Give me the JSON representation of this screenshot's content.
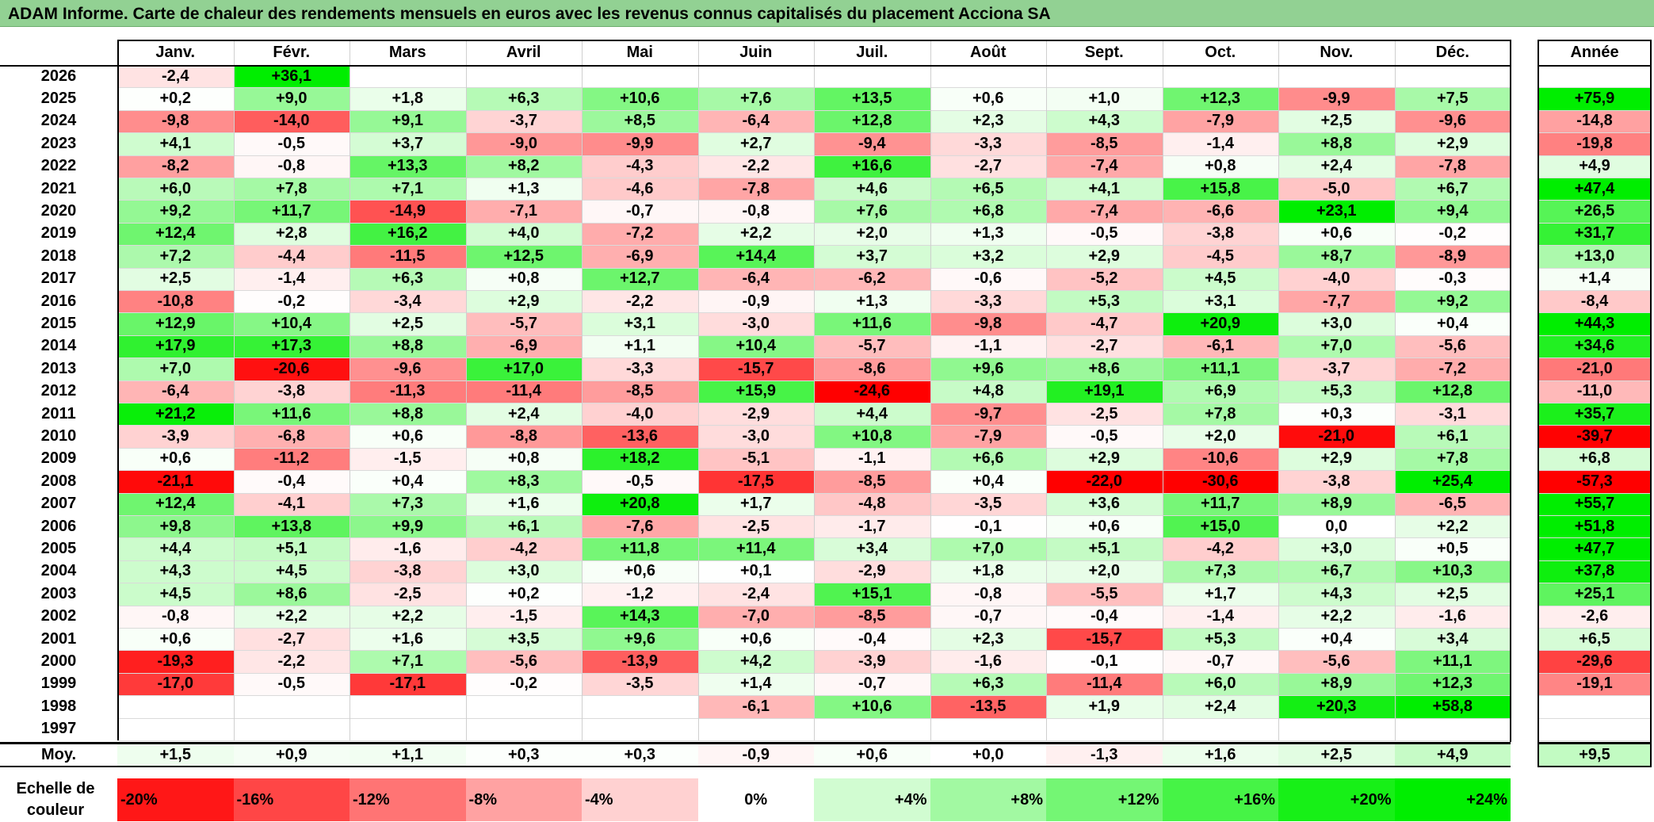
{
  "title": "ADAM Informe. Carte de chaleur des rendements mensuels en euros avec les revenus connus capitalisés du placement Acciona SA",
  "months": [
    "Janv.",
    "Févr.",
    "Mars",
    "Avril",
    "Mai",
    "Juin",
    "Juil.",
    "Août",
    "Sept.",
    "Oct.",
    "Nov.",
    "Déc."
  ],
  "annual_header": "Année",
  "avg_label": "Moy.",
  "scale_label_line1": "Echelle de",
  "scale_label_line2": "couleur",
  "colors": {
    "neg_max": "#ff0000",
    "pos_max": "#00ee00",
    "neutral": "#ffffff",
    "title_bar": "#92d193"
  },
  "chart_data": {
    "type": "heatmap",
    "title": "ADAM Informe. Carte de chaleur des rendements mensuels en euros avec les revenus connus capitalisés du placement Acciona SA",
    "x_categories": [
      "Janv.",
      "Févr.",
      "Mars",
      "Avril",
      "Mai",
      "Juin",
      "Juil.",
      "Août",
      "Sept.",
      "Oct.",
      "Nov.",
      "Déc."
    ],
    "rows": [
      {
        "year": "2026",
        "months": [
          "-2,4",
          "+36,1",
          "",
          "",
          "",
          "",
          "",
          "",
          "",
          "",
          "",
          ""
        ],
        "annual": ""
      },
      {
        "year": "2025",
        "months": [
          "+0,2",
          "+9,0",
          "+1,8",
          "+6,3",
          "+10,6",
          "+7,6",
          "+13,5",
          "+0,6",
          "+1,0",
          "+12,3",
          "-9,9",
          "+7,5"
        ],
        "annual": "+75,9"
      },
      {
        "year": "2024",
        "months": [
          "-9,8",
          "-14,0",
          "+9,1",
          "-3,7",
          "+8,5",
          "-6,4",
          "+12,8",
          "+2,3",
          "+4,3",
          "-7,9",
          "+2,5",
          "-9,6"
        ],
        "annual": "-14,8"
      },
      {
        "year": "2023",
        "months": [
          "+4,1",
          "-0,5",
          "+3,7",
          "-9,0",
          "-9,9",
          "+2,7",
          "-9,4",
          "-3,3",
          "-8,5",
          "-1,4",
          "+8,8",
          "+2,9"
        ],
        "annual": "-19,8"
      },
      {
        "year": "2022",
        "months": [
          "-8,2",
          "-0,8",
          "+13,3",
          "+8,2",
          "-4,3",
          "-2,2",
          "+16,6",
          "-2,7",
          "-7,4",
          "+0,8",
          "+2,4",
          "-7,8"
        ],
        "annual": "+4,9"
      },
      {
        "year": "2021",
        "months": [
          "+6,0",
          "+7,8",
          "+7,1",
          "+1,3",
          "-4,6",
          "-7,8",
          "+4,6",
          "+6,5",
          "+4,1",
          "+15,8",
          "-5,0",
          "+6,7"
        ],
        "annual": "+47,4"
      },
      {
        "year": "2020",
        "months": [
          "+9,2",
          "+11,7",
          "-14,9",
          "-7,1",
          "-0,7",
          "-0,8",
          "+7,6",
          "+6,8",
          "-7,4",
          "-6,6",
          "+23,1",
          "+9,4"
        ],
        "annual": "+26,5"
      },
      {
        "year": "2019",
        "months": [
          "+12,4",
          "+2,8",
          "+16,2",
          "+4,0",
          "-7,2",
          "+2,2",
          "+2,0",
          "+1,3",
          "-0,5",
          "-3,8",
          "+0,6",
          "-0,2"
        ],
        "annual": "+31,7"
      },
      {
        "year": "2018",
        "months": [
          "+7,2",
          "-4,4",
          "-11,5",
          "+12,5",
          "-6,9",
          "+14,4",
          "+3,7",
          "+3,2",
          "+2,9",
          "-4,5",
          "+8,7",
          "-8,9"
        ],
        "annual": "+13,0"
      },
      {
        "year": "2017",
        "months": [
          "+2,5",
          "-1,4",
          "+6,3",
          "+0,8",
          "+12,7",
          "-6,4",
          "-6,2",
          "-0,6",
          "-5,2",
          "+4,5",
          "-4,0",
          "-0,3"
        ],
        "annual": "+1,4"
      },
      {
        "year": "2016",
        "months": [
          "-10,8",
          "-0,2",
          "-3,4",
          "+2,9",
          "-2,2",
          "-0,9",
          "+1,3",
          "-3,3",
          "+5,3",
          "+3,1",
          "-7,7",
          "+9,2"
        ],
        "annual": "-8,4"
      },
      {
        "year": "2015",
        "months": [
          "+12,9",
          "+10,4",
          "+2,5",
          "-5,7",
          "+3,1",
          "-3,0",
          "+11,6",
          "-9,8",
          "-4,7",
          "+20,9",
          "+3,0",
          "+0,4"
        ],
        "annual": "+44,3"
      },
      {
        "year": "2014",
        "months": [
          "+17,9",
          "+17,3",
          "+8,8",
          "-6,9",
          "+1,1",
          "+10,4",
          "-5,7",
          "-1,1",
          "-2,7",
          "-6,1",
          "+7,0",
          "-5,6"
        ],
        "annual": "+34,6"
      },
      {
        "year": "2013",
        "months": [
          "+7,0",
          "-20,6",
          "-9,6",
          "+17,0",
          "-3,3",
          "-15,7",
          "-8,6",
          "+9,6",
          "+8,6",
          "+11,1",
          "-3,7",
          "-7,2"
        ],
        "annual": "-21,0"
      },
      {
        "year": "2012",
        "months": [
          "-6,4",
          "-3,8",
          "-11,3",
          "-11,4",
          "-8,5",
          "+15,9",
          "-24,6",
          "+4,8",
          "+19,1",
          "+6,9",
          "+5,3",
          "+12,8"
        ],
        "annual": "-11,0"
      },
      {
        "year": "2011",
        "months": [
          "+21,2",
          "+11,6",
          "+8,8",
          "+2,4",
          "-4,0",
          "-2,9",
          "+4,4",
          "-9,7",
          "-2,5",
          "+7,8",
          "+0,3",
          "-3,1"
        ],
        "annual": "+35,7"
      },
      {
        "year": "2010",
        "months": [
          "-3,9",
          "-6,8",
          "+0,6",
          "-8,8",
          "-13,6",
          "-3,0",
          "+10,8",
          "-7,9",
          "-0,5",
          "+2,0",
          "-21,0",
          "+6,1"
        ],
        "annual": "-39,7"
      },
      {
        "year": "2009",
        "months": [
          "+0,6",
          "-11,2",
          "-1,5",
          "+0,8",
          "+18,2",
          "-5,1",
          "-1,1",
          "+6,6",
          "+2,9",
          "-10,6",
          "+2,9",
          "+7,8"
        ],
        "annual": "+6,8"
      },
      {
        "year": "2008",
        "months": [
          "-21,1",
          "-0,4",
          "+0,4",
          "+8,3",
          "-0,5",
          "-17,5",
          "-8,5",
          "+0,4",
          "-22,0",
          "-30,6",
          "-3,8",
          "+25,4"
        ],
        "annual": "-57,3"
      },
      {
        "year": "2007",
        "months": [
          "+12,4",
          "-4,1",
          "+7,3",
          "+1,6",
          "+20,8",
          "+1,7",
          "-4,8",
          "-3,5",
          "+3,6",
          "+11,7",
          "+8,9",
          "-6,5"
        ],
        "annual": "+55,7"
      },
      {
        "year": "2006",
        "months": [
          "+9,8",
          "+13,8",
          "+9,9",
          "+6,1",
          "-7,6",
          "-2,5",
          "-1,7",
          "-0,1",
          "+0,6",
          "+15,0",
          "0,0",
          "+2,2"
        ],
        "annual": "+51,8"
      },
      {
        "year": "2005",
        "months": [
          "+4,4",
          "+5,1",
          "-1,6",
          "-4,2",
          "+11,8",
          "+11,4",
          "+3,4",
          "+7,0",
          "+5,1",
          "-4,2",
          "+3,0",
          "+0,5"
        ],
        "annual": "+47,7"
      },
      {
        "year": "2004",
        "months": [
          "+4,3",
          "+4,5",
          "-3,8",
          "+3,0",
          "+0,6",
          "+0,1",
          "-2,9",
          "+1,8",
          "+2,0",
          "+7,3",
          "+6,7",
          "+10,3"
        ],
        "annual": "+37,8"
      },
      {
        "year": "2003",
        "months": [
          "+4,5",
          "+8,6",
          "-2,5",
          "+0,2",
          "-1,2",
          "-2,4",
          "+15,1",
          "-0,8",
          "-5,5",
          "+1,7",
          "+4,3",
          "+2,5"
        ],
        "annual": "+25,1"
      },
      {
        "year": "2002",
        "months": [
          "-0,8",
          "+2,2",
          "+2,2",
          "-1,5",
          "+14,3",
          "-7,0",
          "-8,5",
          "-0,7",
          "-0,4",
          "-1,4",
          "+2,2",
          "-1,6"
        ],
        "annual": "-2,6"
      },
      {
        "year": "2001",
        "months": [
          "+0,6",
          "-2,7",
          "+1,6",
          "+3,5",
          "+9,6",
          "+0,6",
          "-0,4",
          "+2,3",
          "-15,7",
          "+5,3",
          "+0,4",
          "+3,4"
        ],
        "annual": "+6,5"
      },
      {
        "year": "2000",
        "months": [
          "-19,3",
          "-2,2",
          "+7,1",
          "-5,6",
          "-13,9",
          "+4,2",
          "-3,9",
          "-1,6",
          "-0,1",
          "-0,7",
          "-5,6",
          "+11,1"
        ],
        "annual": "-29,6"
      },
      {
        "year": "1999",
        "months": [
          "-17,0",
          "-0,5",
          "-17,1",
          "-0,2",
          "-3,5",
          "+1,4",
          "-0,7",
          "+6,3",
          "-11,4",
          "+6,0",
          "+8,9",
          "+12,3"
        ],
        "annual": "-19,1"
      },
      {
        "year": "1998",
        "months": [
          "",
          "",
          "",
          "",
          "",
          "-6,1",
          "+10,6",
          "-13,5",
          "+1,9",
          "+2,4",
          "+20,3",
          "+58,8"
        ],
        "annual": ""
      },
      {
        "year": "1997",
        "months": [
          "",
          "",
          "",
          "",
          "",
          "",
          "",
          "",
          "",
          "",
          "",
          ""
        ],
        "annual": ""
      }
    ],
    "average_row": {
      "months": [
        "+1,5",
        "+0,9",
        "+1,1",
        "+0,3",
        "+0,3",
        "-0,9",
        "+0,6",
        "+0,0",
        "-1,3",
        "+1,6",
        "+2,5",
        "+4,9"
      ],
      "annual": "+9,5"
    },
    "color_scale": [
      "-20%",
      "-16%",
      "-12%",
      "-8%",
      "-4%",
      "0%",
      "+4%",
      "+8%",
      "+12%",
      "+16%",
      "+20%",
      "+24%"
    ]
  }
}
